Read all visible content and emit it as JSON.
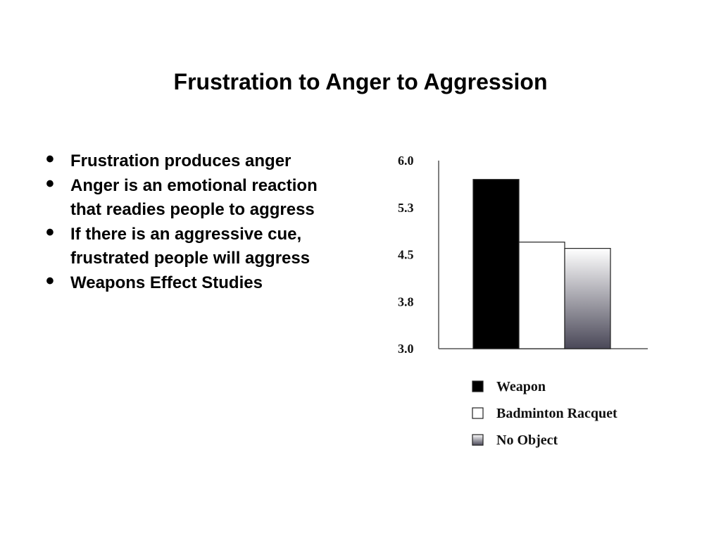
{
  "slide": {
    "title": "Frustration to Anger to Aggression",
    "bullets": [
      "Frustration produces anger",
      "Anger is an emotional reaction that readies people to aggress",
      "If there is an aggressive cue, frustrated people will aggress",
      "Weapons Effect Studies"
    ]
  },
  "chart_data": {
    "type": "bar",
    "title": "",
    "xlabel": "",
    "ylabel": "",
    "ylim": [
      3.0,
      6.0
    ],
    "yticks": [
      "6.0",
      "5.3",
      "4.5",
      "3.8",
      "3.0"
    ],
    "grid": false,
    "legend_position": "bottom",
    "series": [
      {
        "name": "Weapon",
        "values": [
          5.7
        ],
        "color": "#000000",
        "fill": "solid"
      },
      {
        "name": "Badminton Racquet",
        "values": [
          4.7
        ],
        "color": "#ffffff",
        "fill": "solid"
      },
      {
        "name": "No Object",
        "values": [
          4.6
        ],
        "color": "#4a4858",
        "fill": "gradient"
      }
    ]
  }
}
